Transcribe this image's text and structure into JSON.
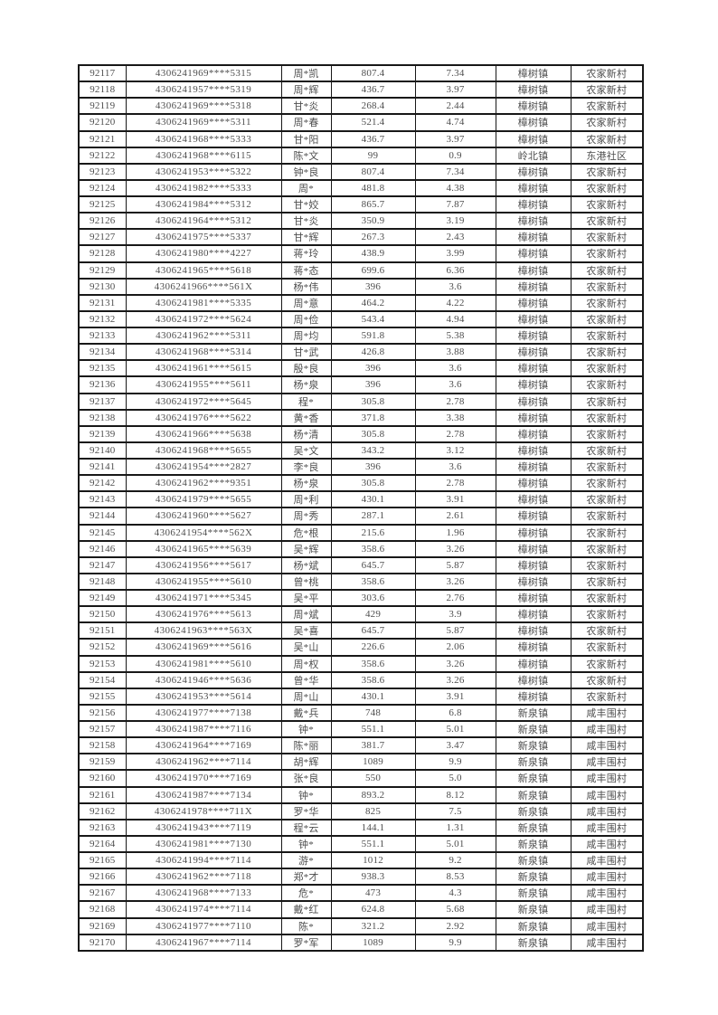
{
  "page": {
    "background": "#ffffff",
    "text_color": "#4e4e4e",
    "border_color": "#181818",
    "first_serial": "92117",
    "last_serial": "92170",
    "row_count": 54
  },
  "table": {
    "cell_names": [
      "cell-serial-number",
      "cell-id-number",
      "cell-name",
      "cell-amount",
      "cell-percentage",
      "cell-town",
      "cell-village"
    ],
    "rows": [
      [
        "92117",
        "4306241969****5315",
        "周*凯",
        "807.4",
        "7.34",
        "樟树镇",
        "农家新村"
      ],
      [
        "92118",
        "4306241957****5319",
        "周*辉",
        "436.7",
        "3.97",
        "樟树镇",
        "农家新村"
      ],
      [
        "92119",
        "4306241969****5318",
        "甘*炎",
        "268.4",
        "2.44",
        "樟树镇",
        "农家新村"
      ],
      [
        "92120",
        "4306241969****5311",
        "周*春",
        "521.4",
        "4.74",
        "樟树镇",
        "农家新村"
      ],
      [
        "92121",
        "4306241968****5333",
        "甘*阳",
        "436.7",
        "3.97",
        "樟树镇",
        "农家新村"
      ],
      [
        "92122",
        "4306241968****6115",
        "陈*文",
        "99",
        "0.9",
        "岭北镇",
        "东港社区"
      ],
      [
        "92123",
        "4306241953****5322",
        "钟*良",
        "807.4",
        "7.34",
        "樟树镇",
        "农家新村"
      ],
      [
        "92124",
        "4306241982****5333",
        "周*",
        "481.8",
        "4.38",
        "樟树镇",
        "农家新村"
      ],
      [
        "92125",
        "4306241984****5312",
        "甘*姣",
        "865.7",
        "7.87",
        "樟树镇",
        "农家新村"
      ],
      [
        "92126",
        "4306241964****5312",
        "甘*炎",
        "350.9",
        "3.19",
        "樟树镇",
        "农家新村"
      ],
      [
        "92127",
        "4306241975****5337",
        "甘*辉",
        "267.3",
        "2.43",
        "樟树镇",
        "农家新村"
      ],
      [
        "92128",
        "4306241980****4227",
        "蒋*玲",
        "438.9",
        "3.99",
        "樟树镇",
        "农家新村"
      ],
      [
        "92129",
        "4306241965****5618",
        "蒋*态",
        "699.6",
        "6.36",
        "樟树镇",
        "农家新村"
      ],
      [
        "92130",
        "4306241966****561X",
        "杨*伟",
        "396",
        "3.6",
        "樟树镇",
        "农家新村"
      ],
      [
        "92131",
        "4306241981****5335",
        "周*意",
        "464.2",
        "4.22",
        "樟树镇",
        "农家新村"
      ],
      [
        "92132",
        "4306241972****5624",
        "周*俭",
        "543.4",
        "4.94",
        "樟树镇",
        "农家新村"
      ],
      [
        "92133",
        "4306241962****5311",
        "周*均",
        "591.8",
        "5.38",
        "樟树镇",
        "农家新村"
      ],
      [
        "92134",
        "4306241968****5314",
        "甘*武",
        "426.8",
        "3.88",
        "樟树镇",
        "农家新村"
      ],
      [
        "92135",
        "4306241961****5615",
        "殷*良",
        "396",
        "3.6",
        "樟树镇",
        "农家新村"
      ],
      [
        "92136",
        "4306241955****5611",
        "杨*泉",
        "396",
        "3.6",
        "樟树镇",
        "农家新村"
      ],
      [
        "92137",
        "4306241972****5645",
        "程*",
        "305.8",
        "2.78",
        "樟树镇",
        "农家新村"
      ],
      [
        "92138",
        "4306241976****5622",
        "黄*香",
        "371.8",
        "3.38",
        "樟树镇",
        "农家新村"
      ],
      [
        "92139",
        "4306241966****5638",
        "杨*清",
        "305.8",
        "2.78",
        "樟树镇",
        "农家新村"
      ],
      [
        "92140",
        "4306241968****5655",
        "吴*文",
        "343.2",
        "3.12",
        "樟树镇",
        "农家新村"
      ],
      [
        "92141",
        "4306241954****2827",
        "李*良",
        "396",
        "3.6",
        "樟树镇",
        "农家新村"
      ],
      [
        "92142",
        "4306241962****9351",
        "杨*泉",
        "305.8",
        "2.78",
        "樟树镇",
        "农家新村"
      ],
      [
        "92143",
        "4306241979****5655",
        "周*利",
        "430.1",
        "3.91",
        "樟树镇",
        "农家新村"
      ],
      [
        "92144",
        "4306241960****5627",
        "周*秀",
        "287.1",
        "2.61",
        "樟树镇",
        "农家新村"
      ],
      [
        "92145",
        "4306241954****562X",
        "危*根",
        "215.6",
        "1.96",
        "樟树镇",
        "农家新村"
      ],
      [
        "92146",
        "4306241965****5639",
        "吴*辉",
        "358.6",
        "3.26",
        "樟树镇",
        "农家新村"
      ],
      [
        "92147",
        "4306241956****5617",
        "杨*斌",
        "645.7",
        "5.87",
        "樟树镇",
        "农家新村"
      ],
      [
        "92148",
        "4306241955****5610",
        "曾*桃",
        "358.6",
        "3.26",
        "樟树镇",
        "农家新村"
      ],
      [
        "92149",
        "4306241971****5345",
        "吴*平",
        "303.6",
        "2.76",
        "樟树镇",
        "农家新村"
      ],
      [
        "92150",
        "4306241976****5613",
        "周*斌",
        "429",
        "3.9",
        "樟树镇",
        "农家新村"
      ],
      [
        "92151",
        "4306241963****563X",
        "吴*喜",
        "645.7",
        "5.87",
        "樟树镇",
        "农家新村"
      ],
      [
        "92152",
        "4306241969****5616",
        "吴*山",
        "226.6",
        "2.06",
        "樟树镇",
        "农家新村"
      ],
      [
        "92153",
        "4306241981****5610",
        "周*权",
        "358.6",
        "3.26",
        "樟树镇",
        "农家新村"
      ],
      [
        "92154",
        "4306241946****5636",
        "曾*华",
        "358.6",
        "3.26",
        "樟树镇",
        "农家新村"
      ],
      [
        "92155",
        "4306241953****5614",
        "周*山",
        "430.1",
        "3.91",
        "樟树镇",
        "农家新村"
      ],
      [
        "92156",
        "4306241977****7138",
        "戴*兵",
        "748",
        "6.8",
        "新泉镇",
        "咸丰围村"
      ],
      [
        "92157",
        "4306241987****7116",
        "钟*",
        "551.1",
        "5.01",
        "新泉镇",
        "咸丰围村"
      ],
      [
        "92158",
        "4306241964****7169",
        "陈*丽",
        "381.7",
        "3.47",
        "新泉镇",
        "咸丰围村"
      ],
      [
        "92159",
        "4306241962****7114",
        "胡*辉",
        "1089",
        "9.9",
        "新泉镇",
        "咸丰围村"
      ],
      [
        "92160",
        "4306241970****7169",
        "张*良",
        "550",
        "5.0",
        "新泉镇",
        "咸丰围村"
      ],
      [
        "92161",
        "4306241987****7134",
        "钟*",
        "893.2",
        "8.12",
        "新泉镇",
        "咸丰围村"
      ],
      [
        "92162",
        "4306241978****711X",
        "罗*华",
        "825",
        "7.5",
        "新泉镇",
        "咸丰围村"
      ],
      [
        "92163",
        "4306241943****7119",
        "程*云",
        "144.1",
        "1.31",
        "新泉镇",
        "咸丰围村"
      ],
      [
        "92164",
        "4306241981****7130",
        "钟*",
        "551.1",
        "5.01",
        "新泉镇",
        "咸丰围村"
      ],
      [
        "92165",
        "4306241994****7114",
        "游*",
        "1012",
        "9.2",
        "新泉镇",
        "咸丰围村"
      ],
      [
        "92166",
        "4306241962****7118",
        "郑*才",
        "938.3",
        "8.53",
        "新泉镇",
        "咸丰围村"
      ],
      [
        "92167",
        "4306241968****7133",
        "危*",
        "473",
        "4.3",
        "新泉镇",
        "咸丰围村"
      ],
      [
        "92168",
        "4306241974****7114",
        "戴*红",
        "624.8",
        "5.68",
        "新泉镇",
        "咸丰围村"
      ],
      [
        "92169",
        "4306241977****7110",
        "陈*",
        "321.2",
        "2.92",
        "新泉镇",
        "咸丰围村"
      ],
      [
        "92170",
        "4306241967****7114",
        "罗*军",
        "1089",
        "9.9",
        "新泉镇",
        "咸丰围村"
      ]
    ]
  }
}
